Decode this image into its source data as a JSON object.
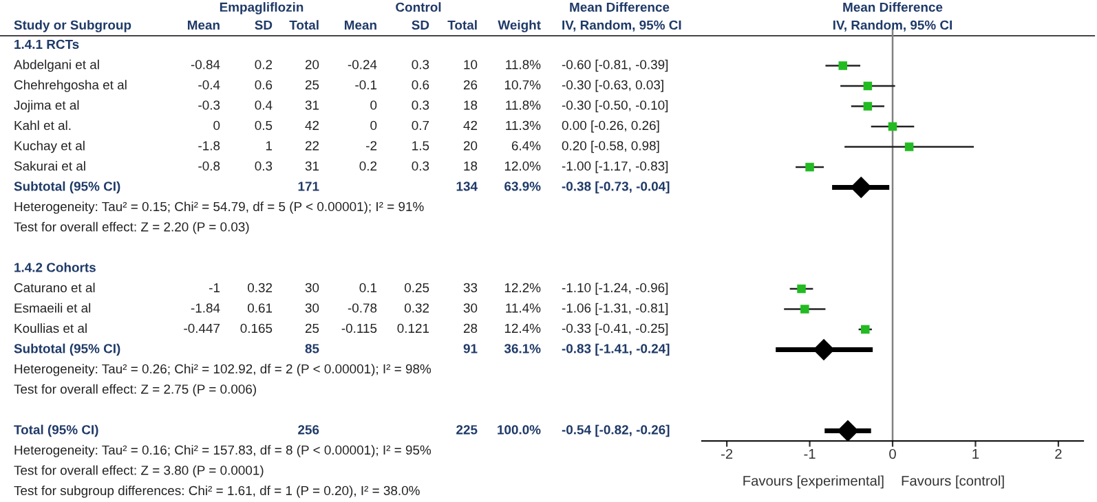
{
  "chart_data": [
    {
      "type": "other",
      "ylabel": "Study or Subgroup",
      "categories": [
        "Mean",
        "SD",
        "Total",
        "Mean",
        "SD",
        "Total",
        "Weight",
        "IV, Random, 95% CI"
      ],
      "annotations": [
        {
          "text": "Empagliflozin",
          "x": "SD"
        },
        {
          "text": "Control",
          "x": "SD"
        },
        {
          "text": "Mean Difference",
          "x": "IV, Random, 95% CI"
        }
      ],
      "y_categories": [
        "1.4.1 RCTs",
        "Abdelgani et al",
        "Chehrehgosha et al",
        "Jojima et al",
        "Kahl et al.",
        "Kuchay et al",
        "Sakurai et al",
        "Subtotal (95% CI)",
        "Heterogeneity: Tau² = 0.15; Chi² = 54.79, df = 5 (P < 0.00001); I² = 91%",
        "Test for overall effect: Z = 2.20 (P = 0.03)",
        null,
        "1.4.2 Cohorts",
        "Caturano et al",
        "Esmaeili et al",
        "Koullias et al",
        "Subtotal (95% CI)",
        "Heterogeneity: Tau² = 0.26; Chi² = 102.92, df = 2 (P < 0.00001); I² = 98%",
        "Test for overall effect: Z = 2.75 (P = 0.006)",
        null,
        "Total (95% CI)",
        "Heterogeneity: Tau² = 0.16; Chi² = 157.83, df = 8 (P < 0.00001); I² = 95%",
        "Test for overall effect: Z = 3.80 (P = 0.0001)",
        "Test for subgroup differences: Chi² = 1.61, df = 1 (P = 0.20), I² = 38.0%"
      ],
      "cell_labels": [
        [
          null,
          null,
          null,
          null,
          null,
          null,
          null,
          null
        ],
        [
          "-0.84",
          "0.2",
          "20",
          "-0.24",
          "0.3",
          "10",
          "11.8%",
          "-0.60 [-0.81, -0.39]"
        ],
        [
          "-0.4",
          "0.6",
          "25",
          "-0.1",
          "0.6",
          "26",
          "10.7%",
          "-0.30 [-0.63, 0.03]"
        ],
        [
          "-0.3",
          "0.4",
          "31",
          "0",
          "0.3",
          "18",
          "11.8%",
          "-0.30 [-0.50, -0.10]"
        ],
        [
          "0",
          "0.5",
          "42",
          "0",
          "0.7",
          "42",
          "11.3%",
          "0.00 [-0.26, 0.26]"
        ],
        [
          "-1.8",
          "1",
          "22",
          "-2",
          "1.5",
          "20",
          "6.4%",
          "0.20 [-0.58, 0.98]"
        ],
        [
          "-0.8",
          "0.3",
          "31",
          "0.2",
          "0.3",
          "18",
          "12.0%",
          "-1.00 [-1.17, -0.83]"
        ],
        [
          null,
          null,
          "171",
          null,
          null,
          "134",
          "63.9%",
          "-0.38 [-0.73, -0.04]"
        ],
        [
          null,
          null,
          null,
          null,
          null,
          null,
          null,
          null
        ],
        [
          null,
          null,
          null,
          null,
          null,
          null,
          null,
          null
        ],
        [
          null,
          null,
          null,
          null,
          null,
          null,
          null,
          null
        ],
        [
          null,
          null,
          null,
          null,
          null,
          null,
          null,
          null
        ],
        [
          "-1",
          "0.32",
          "30",
          "0.1",
          "0.25",
          "33",
          "12.2%",
          "-1.10 [-1.24, -0.96]"
        ],
        [
          "-1.84",
          "0.61",
          "30",
          "-0.78",
          "0.32",
          "30",
          "11.4%",
          "-1.06 [-1.31, -0.81]"
        ],
        [
          "-0.447",
          "0.165",
          "25",
          "-0.115",
          "0.121",
          "28",
          "12.4%",
          "-0.33 [-0.41, -0.25]"
        ],
        [
          null,
          null,
          "85",
          null,
          null,
          "91",
          "36.1%",
          "-0.83 [-1.41, -0.24]"
        ],
        [
          null,
          null,
          null,
          null,
          null,
          null,
          null,
          null
        ],
        [
          null,
          null,
          null,
          null,
          null,
          null,
          null,
          null
        ],
        [
          null,
          null,
          null,
          null,
          null,
          null,
          null,
          null
        ],
        [
          null,
          null,
          "256",
          null,
          null,
          "225",
          "100.0%",
          "-0.54 [-0.82, -0.26]"
        ],
        [
          null,
          null,
          null,
          null,
          null,
          null,
          null,
          null
        ],
        [
          null,
          null,
          null,
          null,
          null,
          null,
          null,
          null
        ],
        [
          null,
          null,
          null,
          null,
          null,
          null,
          null,
          null
        ]
      ]
    },
    {
      "type": "scatter",
      "orientation": "horizontal",
      "title": "Mean Difference",
      "subtitle": "IV, Random, 95% CI",
      "categories": [
        null,
        null,
        null,
        null,
        null,
        null,
        null,
        null,
        null,
        null,
        null,
        null,
        null,
        null,
        null,
        null,
        null,
        null,
        null,
        null
      ],
      "series": [
        {
          "color": "#22bb22",
          "marker": "square",
          "values": [
            null,
            -0.6,
            -0.3,
            -0.3,
            0.0,
            0.2,
            -1.0,
            null,
            null,
            null,
            null,
            null,
            -1.1,
            -1.06,
            -0.33,
            null,
            null,
            null,
            null,
            null
          ],
          "errors": [
            null,
            [
              -0.81,
              -0.39
            ],
            [
              -0.63,
              0.03
            ],
            [
              -0.5,
              -0.1
            ],
            [
              -0.26,
              0.26
            ],
            [
              -0.58,
              0.98
            ],
            [
              -1.17,
              -0.83
            ],
            null,
            null,
            null,
            null,
            null,
            [
              -1.24,
              -0.96
            ],
            [
              -1.31,
              -0.81
            ],
            [
              -0.41,
              -0.25
            ],
            null,
            null,
            null,
            null,
            null
          ]
        },
        {
          "color": "#000000",
          "marker": "diamond",
          "values": [
            null,
            null,
            null,
            null,
            null,
            null,
            null,
            -0.38,
            null,
            null,
            null,
            null,
            null,
            null,
            null,
            -0.83,
            null,
            null,
            null,
            -0.54
          ],
          "errors": [
            null,
            null,
            null,
            null,
            null,
            null,
            null,
            [
              -0.73,
              -0.04
            ],
            null,
            null,
            null,
            null,
            null,
            null,
            null,
            [
              -1.41,
              -0.24
            ],
            null,
            null,
            null,
            [
              -0.82,
              -0.26
            ]
          ]
        }
      ],
      "xlim": [
        -2.3,
        2.3
      ],
      "xticks": [
        -2,
        -1,
        0,
        1,
        2
      ],
      "ref_lines": [
        {
          "axis": "x",
          "value": 0,
          "color": "#808080"
        }
      ],
      "annotations": [
        "Favours [experimental]",
        "Favours [control]"
      ],
      "tick_labels": "x"
    }
  ]
}
